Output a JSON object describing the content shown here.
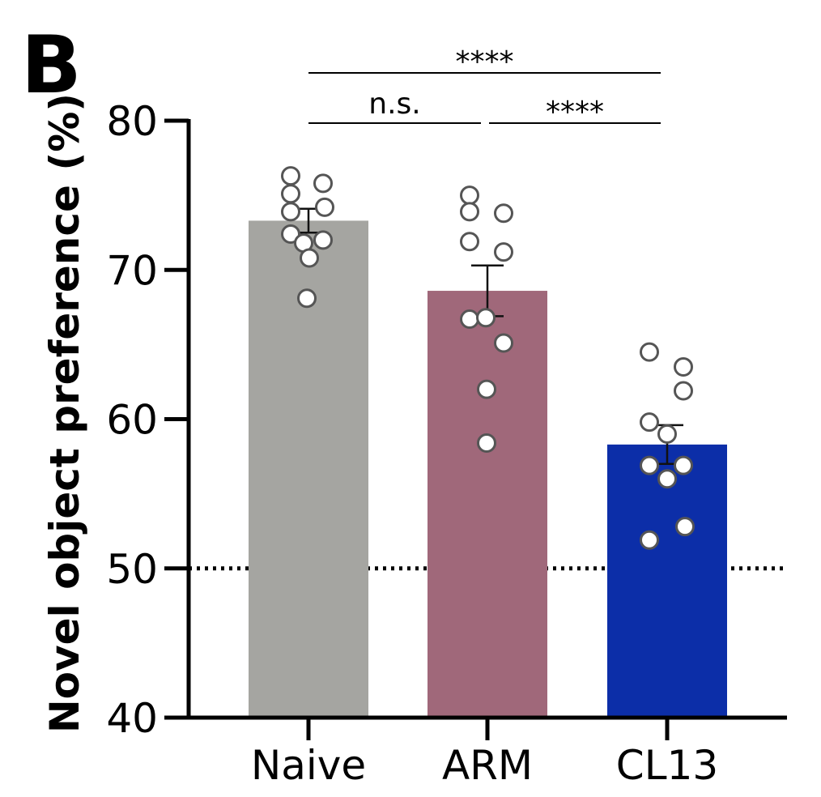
{
  "panel_label": "B",
  "colors": {
    "naive": "#a5a5a1",
    "arm": "#a0687a",
    "cl13": "#0c2ea8",
    "axis": "#000000",
    "point_fill": "#ffffff",
    "point_stroke": "#555555"
  },
  "chart_data": {
    "type": "bar",
    "title": "",
    "xlabel": "",
    "ylabel": "Novel object preference (%)",
    "ylim": [
      40,
      80
    ],
    "yticks": [
      40,
      50,
      60,
      70,
      80
    ],
    "yticklabels": [
      "40",
      "50",
      "60",
      "70",
      "80"
    ],
    "reference_line": {
      "y": 50,
      "style": "dotted"
    },
    "categories": [
      "Naive",
      "ARM",
      "CL13"
    ],
    "values": [
      73.3,
      68.6,
      58.3
    ],
    "error_bars": {
      "lower": [
        72.5,
        66.9,
        57.0
      ],
      "upper": [
        74.1,
        70.3,
        59.6
      ]
    },
    "points": [
      [
        76.3,
        75.8,
        75.1,
        73.9,
        74.2,
        72.4,
        71.8,
        72.0,
        70.8,
        68.1
      ],
      [
        75.0,
        73.8,
        73.9,
        71.9,
        71.2,
        66.7,
        66.8,
        65.1,
        62.0,
        58.4
      ],
      [
        64.5,
        63.5,
        61.9,
        59.8,
        59.0,
        56.9,
        56.9,
        56.0,
        52.8,
        51.9
      ]
    ],
    "significance": [
      {
        "from": 0,
        "to": 2,
        "label": "****",
        "level": "top"
      },
      {
        "from": 0,
        "to": 1,
        "label": "n.s.",
        "level": "bottom"
      },
      {
        "from": 1,
        "to": 2,
        "label": "****",
        "level": "bottom"
      }
    ]
  }
}
